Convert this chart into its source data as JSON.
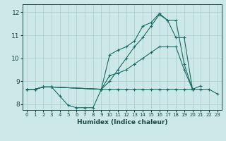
{
  "xlabel": "Humidex (Indice chaleur)",
  "xlim": [
    -0.5,
    23.5
  ],
  "ylim": [
    7.75,
    12.35
  ],
  "yticks": [
    8,
    9,
    10,
    11,
    12
  ],
  "xticks": [
    0,
    1,
    2,
    3,
    4,
    5,
    6,
    7,
    8,
    9,
    10,
    11,
    12,
    13,
    14,
    15,
    16,
    17,
    18,
    19,
    20,
    21,
    22,
    23
  ],
  "bg_color": "#cce8e8",
  "grid_color": "#aacccc",
  "line_color": "#1a6b63",
  "lines": [
    {
      "x": [
        0,
        1,
        2,
        3,
        4,
        5,
        6,
        7,
        8,
        9,
        10,
        11,
        12,
        13,
        14,
        15,
        16,
        17,
        18,
        19,
        20,
        21
      ],
      "y": [
        8.65,
        8.65,
        8.75,
        8.75,
        8.35,
        7.95,
        7.85,
        7.85,
        7.85,
        8.65,
        10.15,
        10.35,
        10.5,
        10.75,
        11.4,
        11.55,
        11.95,
        11.65,
        11.65,
        9.75,
        8.65,
        8.8
      ]
    },
    {
      "x": [
        0,
        1,
        2,
        3,
        9,
        10,
        11,
        12,
        13,
        14,
        15,
        16,
        17,
        18,
        19,
        20
      ],
      "y": [
        8.65,
        8.65,
        8.75,
        8.75,
        8.65,
        9.25,
        9.35,
        9.5,
        9.75,
        10.0,
        10.25,
        10.5,
        10.5,
        10.5,
        9.5,
        8.65
      ]
    },
    {
      "x": [
        0,
        1,
        2,
        3,
        9,
        10,
        11,
        12,
        13,
        14,
        15,
        16,
        17,
        18,
        19,
        20,
        21,
        22,
        23
      ],
      "y": [
        8.65,
        8.65,
        8.75,
        8.75,
        8.65,
        8.65,
        8.65,
        8.65,
        8.65,
        8.65,
        8.65,
        8.65,
        8.65,
        8.65,
        8.65,
        8.65,
        8.65,
        8.65,
        8.45
      ]
    },
    {
      "x": [
        0,
        1,
        2,
        3,
        9,
        10,
        11,
        12,
        13,
        14,
        15,
        16,
        17,
        18,
        19,
        20
      ],
      "y": [
        8.65,
        8.65,
        8.75,
        8.75,
        8.65,
        9.0,
        9.5,
        10.0,
        10.5,
        10.9,
        11.4,
        11.9,
        11.65,
        10.9,
        10.9,
        8.65
      ]
    }
  ]
}
